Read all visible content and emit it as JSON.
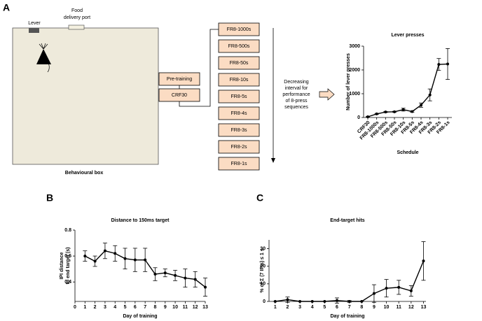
{
  "panels": [
    "A",
    "B",
    "C"
  ],
  "diagram": {
    "lever": "Lever",
    "food_port": [
      "Food",
      "delivery port"
    ],
    "box_caption": "Behavioural box",
    "pretraining": [
      "Pre-training",
      "CRF30"
    ],
    "schedules": [
      "FR8-1000s",
      "FR8-500s",
      "FR8-50s",
      "FR8-10s",
      "FR8-5s",
      "FR8-4s",
      "FR8-3s",
      "FR8-2s",
      "FR8-1s"
    ],
    "interval_note": [
      "Decreasing",
      "interval for",
      "performance",
      "of 8-press",
      "sequences"
    ]
  },
  "chart_data": [
    {
      "type": "line",
      "title": "Lever presses",
      "xlabel": "Schedule",
      "ylabel": "Number of lever presses",
      "categories": [
        "CRF30",
        "FR8-1000s",
        "FR8-500s",
        "FR8-50s",
        "FR8-10s",
        "FR8-5s",
        "FR8-4s",
        "FR8-3s",
        "FR8-2s",
        "FR8-1s"
      ],
      "values": [
        30,
        150,
        230,
        240,
        330,
        250,
        520,
        950,
        2230,
        2250
      ],
      "errors": [
        10,
        20,
        20,
        20,
        60,
        30,
        90,
        250,
        250,
        650
      ],
      "ylim": [
        0,
        3000
      ],
      "yticks": [
        0,
        1000,
        2000,
        3000
      ],
      "color": "#000000"
    },
    {
      "type": "line",
      "title": "Distance to 150ms target",
      "xlabel": "Day of training",
      "ylabel": [
        "IPI distance",
        "to end target (s)"
      ],
      "x": [
        1,
        2,
        3,
        4,
        5,
        6,
        7,
        8,
        9,
        10,
        11,
        12,
        13
      ],
      "values": [
        0.6,
        0.56,
        0.64,
        0.62,
        0.58,
        0.57,
        0.57,
        0.46,
        0.47,
        0.45,
        0.43,
        0.42,
        0.36
      ],
      "errors": [
        0.04,
        0.04,
        0.06,
        0.06,
        0.08,
        0.09,
        0.09,
        0.05,
        0.03,
        0.04,
        0.07,
        0.06,
        0.07
      ],
      "xlim": [
        0,
        13
      ],
      "xticks": [
        0,
        1,
        2,
        3,
        4,
        5,
        6,
        7,
        8,
        9,
        10,
        11,
        12,
        13
      ],
      "ylim": [
        0.25,
        0.8
      ],
      "yticks": [
        0.4,
        0.6,
        0.8
      ],
      "color": "#000000"
    },
    {
      "type": "line",
      "title": "End-target hits",
      "xlabel": "Day of training",
      "ylabel": "% of Σ (7 IPIs) ≤ 1 s",
      "x": [
        1,
        2,
        3,
        4,
        5,
        6,
        7,
        8,
        9,
        10,
        11,
        12,
        13
      ],
      "values": [
        0,
        1,
        0,
        0,
        0,
        0.5,
        0,
        0,
        4.5,
        7.5,
        8,
        6,
        23
      ],
      "errors": [
        0,
        1.5,
        0,
        0,
        0,
        1.5,
        0.5,
        0,
        5,
        5,
        4,
        3,
        11
      ],
      "xlim": [
        0.5,
        13.2
      ],
      "xticks": [
        1,
        2,
        3,
        4,
        5,
        6,
        7,
        8,
        9,
        10,
        11,
        12,
        13
      ],
      "ylim": [
        0,
        35
      ],
      "yticks": [
        0,
        10,
        20,
        30
      ],
      "color": "#000000"
    }
  ]
}
